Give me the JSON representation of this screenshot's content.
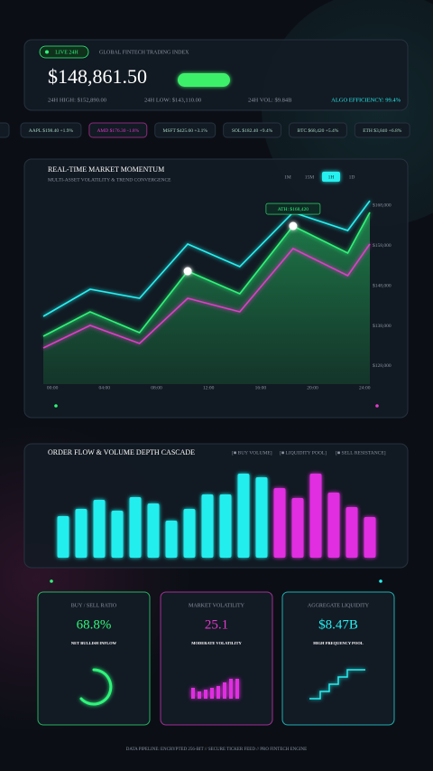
{
  "header": {
    "badge": "LIVE 24H",
    "title": "GLOBAL FINTECH TRADING INDEX",
    "price": "$148,861.50",
    "stats": [
      "24H HIGH: $152,890.00",
      "24H LOW: $143,110.00",
      "24H VOL: $9.84B"
    ],
    "efficiency": "ALGO EFFICIENCY: 99.4%"
  },
  "tickers": [
    {
      "text": "AAPL $198.40 +1.9%",
      "trend": "up"
    },
    {
      "text": "AMD $176.30 -1.8%",
      "trend": "down"
    },
    {
      "text": "MSFT $425.60 +3.1%",
      "trend": "up"
    },
    {
      "text": "SOL $182.40 +9.4%",
      "trend": "up"
    },
    {
      "text": "BTC $68,420 +5.4%",
      "trend": "up"
    },
    {
      "text": "ETH $3,840 +6.8%",
      "trend": "up"
    }
  ],
  "chart_data": [
    {
      "type": "line",
      "title": "REAL-TIME MARKET MOMENTUM",
      "subtitle": "MULTI-ASSET VOLATILITY & TREND CONVERGENCE",
      "timeframes": [
        "1M",
        "15M",
        "1H",
        "1D"
      ],
      "active_timeframe": "1H",
      "annotation": "ATH: $168,420",
      "x": [
        -0.7,
        2.9,
        6.7,
        10.4,
        14.4,
        18.5,
        22.7,
        24.4
      ],
      "xlim": [
        -0.7,
        24.4
      ],
      "xticks": [
        {
          "value": 0,
          "label": "00:00"
        },
        {
          "value": 4,
          "label": "04:00"
        },
        {
          "value": 8,
          "label": "08:00"
        },
        {
          "value": 12,
          "label": "12:00"
        },
        {
          "value": 16,
          "label": "16:00"
        },
        {
          "value": 20,
          "label": "20:00"
        },
        {
          "value": 24,
          "label": "24:00"
        }
      ],
      "ylim": [
        123500,
        170700
      ],
      "yticks": [
        {
          "value": 128000,
          "label": "$128,000"
        },
        {
          "value": 138000,
          "label": "$138,000"
        },
        {
          "value": 148000,
          "label": "$148,000"
        },
        {
          "value": 158000,
          "label": "$158,000"
        },
        {
          "value": 168000,
          "label": "$168,000"
        }
      ],
      "grid": false,
      "series": [
        {
          "color": "#e03cc8",
          "values": [
            132490,
            138110,
            133620,
            144850,
            141480,
            157210,
            150470,
            158330
          ]
        },
        {
          "color": "#2ef57a",
          "area": true,
          "highlight": [
            3,
            5
          ],
          "values": [
            135420,
            141480,
            136310,
            151590,
            145980,
            162830,
            156090,
            166200
          ]
        },
        {
          "color": "#27f0f0",
          "values": [
            140360,
            147100,
            144850,
            158330,
            152720,
            166200,
            161700,
            169100
          ]
        }
      ]
    },
    {
      "type": "bar",
      "title": "ORDER FLOW & VOLUME DEPTH CASCADE",
      "legend": [
        "[■ BUY VOLUME]",
        "[■ LIQUIDITY POOL]",
        "[■ SELL RESISTANCE]"
      ],
      "ylim": [
        0,
        100
      ],
      "values": [
        46,
        54,
        64,
        52,
        67,
        60,
        41,
        54,
        70,
        70,
        93,
        89,
        77,
        66,
        93,
        72,
        56,
        45
      ],
      "colors": [
        "#22eeee",
        "#22eeee",
        "#22eeee",
        "#22eeee",
        "#22eeee",
        "#22eeee",
        "#22eeee",
        "#22eeee",
        "#22eeee",
        "#22eeee",
        "#22eeee",
        "#22eeee",
        "#e02ee0",
        "#e02ee0",
        "#e02ee0",
        "#e02ee0",
        "#e02ee0",
        "#e02ee0"
      ]
    }
  ],
  "cards": [
    {
      "title": "BUY / SELL RATIO",
      "value": "68.8%",
      "caption": "NET BULLISH INFLOW",
      "color": "#2ef57a"
    },
    {
      "title": "MARKET VOLATILITY",
      "value": "25.1",
      "caption": "MODERATE VOLATILITY",
      "color": "#e03cc8"
    },
    {
      "title": "AGGREGATE LIQUIDITY",
      "value": "$8.47B",
      "caption": "HIGH FREQUENCY POOL",
      "color": "#27f0f0"
    }
  ],
  "footer": "DATA PIPELINE: ENCRYPTED 256-BIT // SECURE TICKER FEED // PRO FINTECH ENGINE"
}
